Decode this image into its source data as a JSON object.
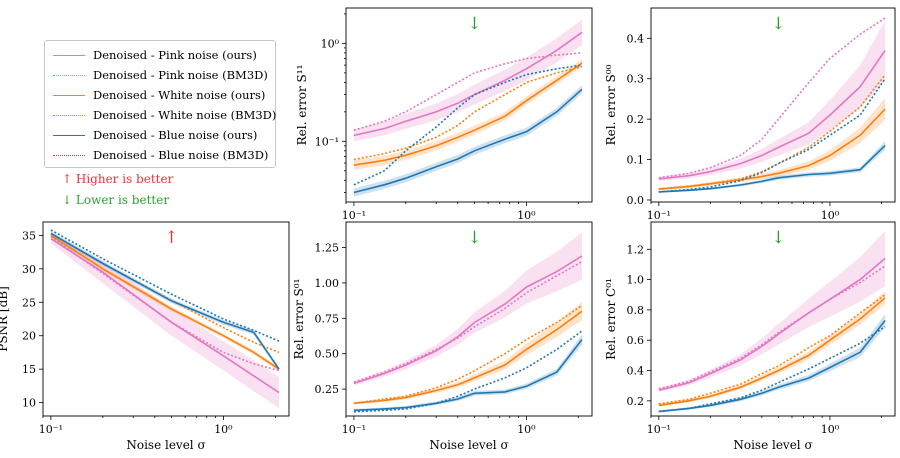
{
  "colors": {
    "pink": "#e377c2",
    "orange": "#ff7f0e",
    "blue": "#1f77b4",
    "red": "#e8333a",
    "green": "#2ca02c"
  },
  "legend": {
    "items": [
      {
        "label": "Denoised - Pink noise (ours)",
        "color": "#e377c2",
        "style": "solid"
      },
      {
        "label": "Denoised - Pink noise (BM3D)",
        "color": "#e377c2",
        "style": "dotted"
      },
      {
        "label": "Denoised - White noise (ours)",
        "color": "#ff7f0e",
        "style": "solid"
      },
      {
        "label": "Denoised - White noise (BM3D)",
        "color": "#ff7f0e",
        "style": "dotted"
      },
      {
        "label": "Denoised - Blue noise (ours)",
        "color": "#1f77b4",
        "style": "solid"
      },
      {
        "label": "Denoised - Blue noise (BM3D)",
        "color": "#1f77b4",
        "style": "dotted"
      }
    ]
  },
  "notes": {
    "higher": "↑ Higher is better",
    "lower": "↓ Lower is better"
  },
  "chart_data": [
    {
      "id": "s11",
      "type": "line",
      "title": "",
      "arrow": "↓",
      "xscale": "log",
      "yscale": "log",
      "xlabel": "",
      "ylabel": "Rel. error S¹¹",
      "xlim": [
        0.09,
        2.4
      ],
      "ylim": [
        0.024,
        2.3
      ],
      "xticks": [
        {
          "v": 0.1,
          "label": "10⁻¹"
        },
        {
          "v": 1,
          "label": "10⁰"
        }
      ],
      "yticks": [
        {
          "v": 0.1,
          "label": "10⁻¹"
        },
        {
          "v": 1,
          "label": "10⁰"
        }
      ],
      "x": [
        0.1,
        0.15,
        0.2,
        0.3,
        0.4,
        0.5,
        0.75,
        1.0,
        1.5,
        2.1
      ],
      "series": [
        {
          "name": "Denoised - Pink noise (ours)",
          "color": "#e377c2",
          "style": "solid",
          "values": [
            0.115,
            0.135,
            0.16,
            0.2,
            0.245,
            0.3,
            0.42,
            0.55,
            0.85,
            1.3
          ],
          "band": [
            0.15,
            0.35
          ]
        },
        {
          "name": "Denoised - Pink noise (BM3D)",
          "color": "#e377c2",
          "style": "dotted",
          "values": [
            0.13,
            0.16,
            0.2,
            0.3,
            0.4,
            0.5,
            0.62,
            0.7,
            0.76,
            0.8
          ]
        },
        {
          "name": "Denoised - White noise (ours)",
          "color": "#ff7f0e",
          "style": "solid",
          "values": [
            0.057,
            0.064,
            0.072,
            0.09,
            0.11,
            0.13,
            0.18,
            0.26,
            0.42,
            0.63
          ],
          "band": [
            0.12,
            0.1
          ]
        },
        {
          "name": "Denoised - White noise (BM3D)",
          "color": "#ff7f0e",
          "style": "dotted",
          "values": [
            0.065,
            0.075,
            0.085,
            0.11,
            0.145,
            0.2,
            0.3,
            0.4,
            0.5,
            0.58
          ]
        },
        {
          "name": "Denoised - Blue noise (ours)",
          "color": "#1f77b4",
          "style": "solid",
          "values": [
            0.03,
            0.036,
            0.042,
            0.055,
            0.066,
            0.08,
            0.105,
            0.125,
            0.2,
            0.34
          ],
          "band": [
            0.1,
            0.1
          ]
        },
        {
          "name": "Denoised - Blue noise (BM3D)",
          "color": "#1f77b4",
          "style": "dotted",
          "values": [
            0.036,
            0.05,
            0.08,
            0.14,
            0.22,
            0.3,
            0.4,
            0.48,
            0.55,
            0.6
          ]
        }
      ]
    },
    {
      "id": "s00",
      "type": "line",
      "title": "",
      "arrow": "↓",
      "xscale": "log",
      "yscale": "linear",
      "xlabel": "",
      "ylabel": "Rel. error S⁰⁰",
      "xlim": [
        0.09,
        2.4
      ],
      "ylim": [
        -0.005,
        0.475
      ],
      "xticks": [
        {
          "v": 0.1,
          "label": "10⁻¹"
        },
        {
          "v": 1,
          "label": "10⁰"
        }
      ],
      "yticks": [
        {
          "v": 0.0,
          "label": "0.0"
        },
        {
          "v": 0.1,
          "label": "0.1"
        },
        {
          "v": 0.2,
          "label": "0.2"
        },
        {
          "v": 0.3,
          "label": "0.3"
        },
        {
          "v": 0.4,
          "label": "0.4"
        }
      ],
      "x": [
        0.1,
        0.15,
        0.2,
        0.3,
        0.4,
        0.5,
        0.75,
        1.0,
        1.5,
        2.1
      ],
      "series": [
        {
          "name": "Denoised - Pink noise (ours)",
          "color": "#e377c2",
          "style": "solid",
          "values": [
            0.052,
            0.06,
            0.07,
            0.09,
            0.11,
            0.13,
            0.165,
            0.21,
            0.28,
            0.37
          ],
          "band": [
            0.1,
            0.2
          ]
        },
        {
          "name": "Denoised - Pink noise (BM3D)",
          "color": "#e377c2",
          "style": "dotted",
          "values": [
            0.055,
            0.066,
            0.08,
            0.11,
            0.15,
            0.2,
            0.29,
            0.35,
            0.41,
            0.45
          ]
        },
        {
          "name": "Denoised - White noise (ours)",
          "color": "#ff7f0e",
          "style": "solid",
          "values": [
            0.027,
            0.033,
            0.04,
            0.05,
            0.058,
            0.066,
            0.085,
            0.11,
            0.16,
            0.225
          ],
          "band": [
            0.12,
            0.12
          ]
        },
        {
          "name": "Denoised - White noise (BM3D)",
          "color": "#ff7f0e",
          "style": "dotted",
          "values": [
            0.027,
            0.034,
            0.04,
            0.052,
            0.07,
            0.09,
            0.13,
            0.17,
            0.23,
            0.31
          ]
        },
        {
          "name": "Denoised - Blue noise (ours)",
          "color": "#1f77b4",
          "style": "solid",
          "values": [
            0.02,
            0.024,
            0.028,
            0.037,
            0.046,
            0.055,
            0.063,
            0.066,
            0.075,
            0.135
          ],
          "band": [
            0.1,
            0.08
          ]
        },
        {
          "name": "Denoised - Blue noise (BM3D)",
          "color": "#1f77b4",
          "style": "dotted",
          "values": [
            0.02,
            0.026,
            0.032,
            0.048,
            0.068,
            0.09,
            0.125,
            0.16,
            0.21,
            0.3
          ]
        }
      ]
    },
    {
      "id": "psnr",
      "type": "line",
      "title": "",
      "arrow": "↑",
      "arrow_color": "#e8333a",
      "xscale": "log",
      "yscale": "linear",
      "xlabel": "Noise level σ",
      "ylabel": "PSNR [dB]",
      "xlim": [
        0.09,
        2.4
      ],
      "ylim": [
        8,
        37
      ],
      "xticks": [
        {
          "v": 0.1,
          "label": "10⁻¹"
        },
        {
          "v": 1,
          "label": "10⁰"
        }
      ],
      "yticks": [
        {
          "v": 10,
          "label": "10"
        },
        {
          "v": 15,
          "label": "15"
        },
        {
          "v": 20,
          "label": "20"
        },
        {
          "v": 25,
          "label": "25"
        },
        {
          "v": 30,
          "label": "30"
        },
        {
          "v": 35,
          "label": "35"
        }
      ],
      "x": [
        0.1,
        0.2,
        0.5,
        1.0,
        1.5,
        2.1
      ],
      "series": [
        {
          "name": "Denoised - Pink noise (ours)",
          "color": "#e377c2",
          "style": "solid",
          "values": [
            34.5,
            29.5,
            22.0,
            17.0,
            14.0,
            11.5
          ],
          "band": [
            0.02,
            0.2
          ]
        },
        {
          "name": "Denoised - Pink noise (BM3D)",
          "color": "#e377c2",
          "style": "dotted",
          "values": [
            34.8,
            29.3,
            22.0,
            17.5,
            15.8,
            14.8
          ]
        },
        {
          "name": "Denoised - White noise (ours)",
          "color": "#ff7f0e",
          "style": "solid",
          "values": [
            35.0,
            30.0,
            24.0,
            20.0,
            17.5,
            15.0
          ],
          "band": [
            0.01,
            0.02
          ]
        },
        {
          "name": "Denoised - White noise (BM3D)",
          "color": "#ff7f0e",
          "style": "dotted",
          "values": [
            35.3,
            30.8,
            25.3,
            21.2,
            19.0,
            17.5
          ]
        },
        {
          "name": "Denoised - Blue noise (ours)",
          "color": "#1f77b4",
          "style": "solid",
          "values": [
            35.3,
            30.8,
            25.2,
            22.0,
            20.5,
            15.0
          ],
          "band": [
            0.01,
            0.02
          ]
        },
        {
          "name": "Denoised - Blue noise (BM3D)",
          "color": "#1f77b4",
          "style": "dotted",
          "values": [
            35.8,
            31.5,
            26.2,
            22.5,
            20.8,
            19.2
          ]
        }
      ]
    },
    {
      "id": "s01",
      "type": "line",
      "title": "",
      "arrow": "↓",
      "xscale": "log",
      "yscale": "linear",
      "xlabel": "Noise level σ",
      "ylabel": "Rel. error S⁰¹",
      "xlim": [
        0.09,
        2.4
      ],
      "ylim": [
        0.06,
        1.43
      ],
      "xticks": [
        {
          "v": 0.1,
          "label": "10⁻¹"
        },
        {
          "v": 1,
          "label": "10⁰"
        }
      ],
      "yticks": [
        {
          "v": 0.25,
          "label": "0.25"
        },
        {
          "v": 0.5,
          "label": "0.50"
        },
        {
          "v": 0.75,
          "label": "0.75"
        },
        {
          "v": 1.0,
          "label": "1.00"
        },
        {
          "v": 1.25,
          "label": "1.25"
        }
      ],
      "x": [
        0.1,
        0.15,
        0.2,
        0.3,
        0.4,
        0.5,
        0.75,
        1.0,
        1.5,
        2.1
      ],
      "series": [
        {
          "name": "Denoised - Pink noise (ours)",
          "color": "#e377c2",
          "style": "solid",
          "values": [
            0.29,
            0.36,
            0.42,
            0.52,
            0.62,
            0.72,
            0.85,
            0.97,
            1.08,
            1.19
          ],
          "band": [
            0.05,
            0.14
          ]
        },
        {
          "name": "Denoised - Pink noise (BM3D)",
          "color": "#e377c2",
          "style": "dotted",
          "values": [
            0.3,
            0.37,
            0.43,
            0.53,
            0.61,
            0.69,
            0.82,
            0.93,
            1.05,
            1.15
          ]
        },
        {
          "name": "Denoised - White noise (ours)",
          "color": "#ff7f0e",
          "style": "solid",
          "values": [
            0.15,
            0.17,
            0.19,
            0.24,
            0.28,
            0.33,
            0.42,
            0.53,
            0.67,
            0.8
          ],
          "band": [
            0.06,
            0.08
          ]
        },
        {
          "name": "Denoised - White noise (BM3D)",
          "color": "#ff7f0e",
          "style": "dotted",
          "values": [
            0.15,
            0.18,
            0.2,
            0.26,
            0.32,
            0.38,
            0.5,
            0.6,
            0.72,
            0.84
          ]
        },
        {
          "name": "Denoised - Blue noise (ours)",
          "color": "#1f77b4",
          "style": "solid",
          "values": [
            0.1,
            0.11,
            0.12,
            0.15,
            0.18,
            0.22,
            0.23,
            0.27,
            0.37,
            0.6
          ],
          "band": [
            0.1,
            0.06
          ]
        },
        {
          "name": "Denoised - Blue noise (BM3D)",
          "color": "#1f77b4",
          "style": "dotted",
          "values": [
            0.09,
            0.1,
            0.11,
            0.15,
            0.2,
            0.25,
            0.33,
            0.4,
            0.53,
            0.66
          ]
        }
      ]
    },
    {
      "id": "c01",
      "type": "line",
      "title": "",
      "arrow": "↓",
      "xscale": "log",
      "yscale": "linear",
      "xlabel": "Noise level σ",
      "ylabel": "Rel. error C⁰¹",
      "xlim": [
        0.09,
        2.4
      ],
      "ylim": [
        0.1,
        1.38
      ],
      "xticks": [
        {
          "v": 0.1,
          "label": "10⁻¹"
        },
        {
          "v": 1,
          "label": "10⁰"
        }
      ],
      "yticks": [
        {
          "v": 0.2,
          "label": "0.2"
        },
        {
          "v": 0.4,
          "label": "0.4"
        },
        {
          "v": 0.6,
          "label": "0.6"
        },
        {
          "v": 0.8,
          "label": "0.8"
        },
        {
          "v": 1.0,
          "label": "1.0"
        },
        {
          "v": 1.2,
          "label": "1.2"
        }
      ],
      "x": [
        0.1,
        0.15,
        0.2,
        0.3,
        0.4,
        0.5,
        0.75,
        1.0,
        1.5,
        2.1
      ],
      "series": [
        {
          "name": "Denoised - Pink noise (ours)",
          "color": "#e377c2",
          "style": "solid",
          "values": [
            0.27,
            0.32,
            0.38,
            0.47,
            0.56,
            0.64,
            0.78,
            0.87,
            1.0,
            1.14
          ],
          "band": [
            0.04,
            0.16
          ]
        },
        {
          "name": "Denoised - Pink noise (BM3D)",
          "color": "#e377c2",
          "style": "dotted",
          "values": [
            0.28,
            0.33,
            0.39,
            0.48,
            0.57,
            0.65,
            0.78,
            0.87,
            0.98,
            1.09
          ]
        },
        {
          "name": "Denoised - White noise (ours)",
          "color": "#ff7f0e",
          "style": "solid",
          "values": [
            0.17,
            0.2,
            0.23,
            0.29,
            0.35,
            0.4,
            0.5,
            0.6,
            0.74,
            0.88
          ],
          "band": [
            0.05,
            0.05
          ]
        },
        {
          "name": "Denoised - White noise (BM3D)",
          "color": "#ff7f0e",
          "style": "dotted",
          "values": [
            0.18,
            0.21,
            0.25,
            0.31,
            0.38,
            0.43,
            0.55,
            0.63,
            0.78,
            0.9
          ]
        },
        {
          "name": "Denoised - Blue noise (ours)",
          "color": "#1f77b4",
          "style": "solid",
          "values": [
            0.13,
            0.15,
            0.17,
            0.21,
            0.25,
            0.29,
            0.35,
            0.42,
            0.52,
            0.73
          ],
          "band": [
            0.06,
            0.06
          ]
        },
        {
          "name": "Denoised - Blue noise (BM3D)",
          "color": "#1f77b4",
          "style": "dotted",
          "values": [
            0.13,
            0.15,
            0.18,
            0.22,
            0.27,
            0.32,
            0.41,
            0.48,
            0.58,
            0.69
          ]
        }
      ]
    }
  ]
}
